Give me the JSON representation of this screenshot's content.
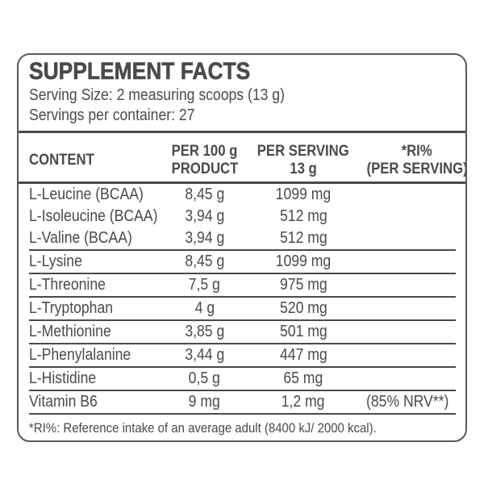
{
  "panel": {
    "title": "SUPPLEMENT FACTS",
    "serving_size": "Serving Size: 2 measuring scoops (13 g)",
    "servings_per_container": "Servings per container: 27",
    "footnote": "*RI%: Reference intake of an average adult (8400 kJ/ 2000 kcal)."
  },
  "table": {
    "headers": {
      "content": "CONTENT",
      "per_100g_line1": "PER 100 g",
      "per_100g_line2": "PRODUCT",
      "per_serving_line1": "PER SERVING",
      "per_serving_line2": "13 g",
      "ri_line1": "*RI%",
      "ri_line2": "(PER SERVING)"
    },
    "rows": [
      {
        "name": "L-Leucine (BCAA)",
        "per_100g": "8,45 g",
        "per_serving": "1099 mg",
        "ri": ""
      },
      {
        "name": "L-Isoleucine (BCAA)",
        "per_100g": "3,94 g",
        "per_serving": "512 mg",
        "ri": ""
      },
      {
        "name": "L-Valine (BCAA)",
        "per_100g": "3,94 g",
        "per_serving": "512 mg",
        "ri": ""
      },
      {
        "name": "L-Lysine",
        "per_100g": "8,45 g",
        "per_serving": "1099 mg",
        "ri": ""
      },
      {
        "name": "L-Threonine",
        "per_100g": "7,5 g",
        "per_serving": "975 mg",
        "ri": ""
      },
      {
        "name": "L-Tryptophan",
        "per_100g": "4 g",
        "per_serving": "520 mg",
        "ri": ""
      },
      {
        "name": "L-Methionine",
        "per_100g": "3,85 g",
        "per_serving": "501 mg",
        "ri": ""
      },
      {
        "name": "L-Phenylalanine",
        "per_100g": "3,44 g",
        "per_serving": "447 mg",
        "ri": ""
      },
      {
        "name": "L-Histidine",
        "per_100g": "0,5 g",
        "per_serving": "65 mg",
        "ri": ""
      },
      {
        "name": "Vitamin B6",
        "per_100g": "9 mg",
        "per_serving": "1,2 mg",
        "ri": "(85% NRV**)"
      }
    ]
  },
  "colors": {
    "text": "#4a4a4c",
    "border": "#5a5a5c"
  }
}
